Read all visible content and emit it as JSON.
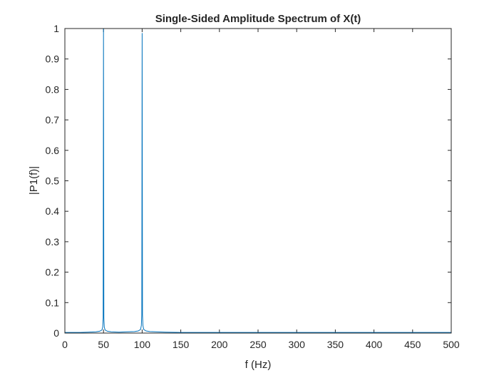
{
  "chart_data": {
    "type": "line",
    "title": "Single-Sided Amplitude Spectrum of X(t)",
    "xlabel": "f (Hz)",
    "ylabel": "|P1(f)|",
    "xlim": [
      0,
      500
    ],
    "ylim": [
      0,
      1
    ],
    "xticks": [
      "0",
      "50",
      "100",
      "150",
      "200",
      "250",
      "300",
      "350",
      "400",
      "450",
      "500"
    ],
    "yticks": [
      "0",
      "0.1",
      "0.2",
      "0.3",
      "0.4",
      "0.5",
      "0.6",
      "0.7",
      "0.8",
      "0.9",
      "1"
    ],
    "grid": false,
    "series_color": "#0072BD",
    "series": [
      {
        "x": [
          0,
          10,
          20,
          30,
          40,
          45,
          48,
          49,
          49.5,
          50,
          50.5,
          51,
          52,
          55,
          60,
          70,
          80,
          90,
          95,
          98,
          99,
          99.5,
          100,
          100.5,
          101,
          102,
          105,
          110,
          130,
          150,
          200,
          250,
          300,
          350,
          400,
          450,
          500
        ],
        "y": [
          0.002,
          0.002,
          0.002,
          0.003,
          0.004,
          0.006,
          0.01,
          0.02,
          0.05,
          1.0,
          0.05,
          0.02,
          0.01,
          0.006,
          0.004,
          0.003,
          0.004,
          0.005,
          0.007,
          0.012,
          0.025,
          0.06,
          0.985,
          0.06,
          0.025,
          0.012,
          0.007,
          0.005,
          0.003,
          0.002,
          0.002,
          0.002,
          0.002,
          0.002,
          0.002,
          0.002,
          0.002
        ]
      }
    ]
  }
}
